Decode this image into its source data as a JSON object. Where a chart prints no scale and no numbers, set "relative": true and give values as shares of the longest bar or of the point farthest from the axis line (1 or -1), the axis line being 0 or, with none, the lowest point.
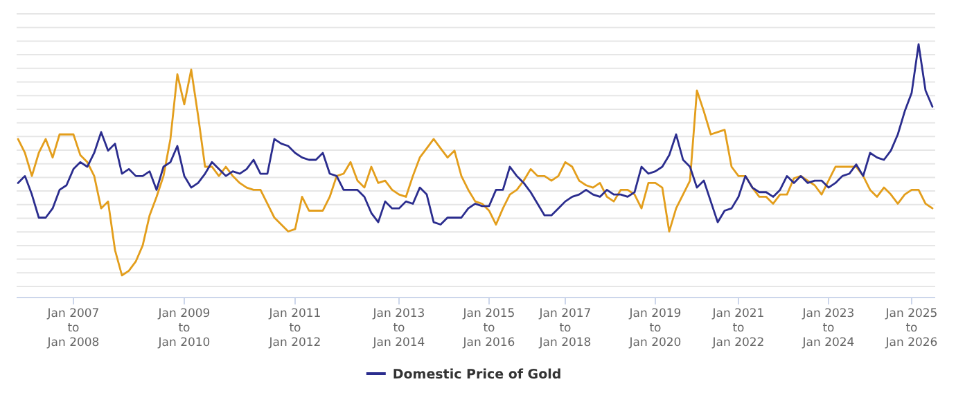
{
  "chart_data": {
    "type": "line",
    "relative": true,
    "grid": "y",
    "legend": "bottom",
    "categories": [
      null,
      null,
      null,
      null,
      null,
      null,
      null,
      null,
      "Jan 2007\nto\nJan 2008",
      null,
      null,
      null,
      null,
      null,
      null,
      null,
      null,
      null,
      null,
      null,
      null,
      null,
      null,
      null,
      "Jan 2009\nto\nJan 2010",
      null,
      null,
      null,
      null,
      null,
      null,
      null,
      null,
      null,
      null,
      null,
      null,
      null,
      null,
      null,
      "Jan 2011\nto\nJan 2012",
      null,
      null,
      null,
      null,
      null,
      null,
      null,
      null,
      null,
      null,
      null,
      null,
      null,
      null,
      "Jan 2013\nto\nJan 2014",
      null,
      null,
      null,
      null,
      null,
      null,
      null,
      null,
      null,
      null,
      null,
      null,
      "Jan 2015\nto\nJan 2016",
      null,
      null,
      null,
      null,
      null,
      null,
      null,
      null,
      null,
      null,
      "Jan 2017\nto\nJan 2018",
      null,
      null,
      null,
      null,
      null,
      null,
      null,
      null,
      null,
      null,
      null,
      null,
      "Jan 2019\nto\nJan 2020",
      null,
      null,
      null,
      null,
      null,
      null,
      null,
      null,
      null,
      null,
      null,
      "Jan 2021\nto\nJan 2022",
      null,
      null,
      null,
      null,
      null,
      null,
      null,
      null,
      null,
      null,
      null,
      null,
      "Jan 2023\nto\nJan 2024",
      null,
      null,
      null,
      null,
      null,
      null,
      null,
      null,
      null,
      null,
      null,
      "Jan 2025\nto\nJan 2026",
      null,
      null,
      null
    ],
    "series": [
      {
        "color": "#e39e1c",
        "values": [
          0.59,
          0.53,
          0.43,
          0.53,
          0.59,
          0.51,
          0.61,
          0.61,
          0.61,
          0.52,
          0.49,
          0.43,
          0.29,
          0.32,
          0.11,
          0,
          0.02,
          0.06,
          0.13,
          0.26,
          0.34,
          0.43,
          0.59,
          0.87,
          0.74,
          0.89,
          0.69,
          0.47,
          0.47,
          0.43,
          0.47,
          0.43,
          0.4,
          0.38,
          0.37,
          0.37,
          0.31,
          0.25,
          0.22,
          0.19,
          0.2,
          0.34,
          0.28,
          0.28,
          0.28,
          0.34,
          0.43,
          0.44,
          0.49,
          0.41,
          0.38,
          0.47,
          0.4,
          0.41,
          0.37,
          0.35,
          0.34,
          0.43,
          0.51,
          0.55,
          0.59,
          0.55,
          0.51,
          0.54,
          0.43,
          0.37,
          0.32,
          0.31,
          0.28,
          0.22,
          0.29,
          0.35,
          0.37,
          0.41,
          0.46,
          0.43,
          0.43,
          0.41,
          0.43,
          0.49,
          0.47,
          0.41,
          0.39,
          0.38,
          0.4,
          0.34,
          0.32,
          0.37,
          0.37,
          0.35,
          0.29,
          0.4,
          0.4,
          0.38,
          0.19,
          0.29,
          0.35,
          0.41,
          0.8,
          0.71,
          0.61,
          0.62,
          0.63,
          0.47,
          0.43,
          0.43,
          0.38,
          0.34,
          0.34,
          0.31,
          0.35,
          0.35,
          0.42,
          0.43,
          0.41,
          0.39,
          0.35,
          0.41,
          0.47,
          0.47,
          0.47,
          0.47,
          0.43,
          0.37,
          0.34,
          0.38,
          0.35,
          0.31,
          0.35,
          0.37,
          0.37,
          0.31,
          0.29
        ]
      },
      {
        "name": "Domestic Price of Gold",
        "color": "#2b2d8e",
        "values": [
          0.4,
          0.43,
          0.35,
          0.25,
          0.25,
          0.29,
          0.37,
          0.39,
          0.46,
          0.49,
          0.47,
          0.53,
          0.62,
          0.54,
          0.57,
          0.44,
          0.46,
          0.43,
          0.43,
          0.45,
          0.37,
          0.47,
          0.49,
          0.56,
          0.43,
          0.38,
          0.4,
          0.44,
          0.49,
          0.46,
          0.43,
          0.45,
          0.44,
          0.46,
          0.5,
          0.44,
          0.44,
          0.59,
          0.57,
          0.56,
          0.53,
          0.51,
          0.5,
          0.5,
          0.53,
          0.44,
          0.43,
          0.37,
          0.37,
          0.37,
          0.34,
          0.27,
          0.23,
          0.32,
          0.29,
          0.29,
          0.32,
          0.31,
          0.38,
          0.35,
          0.23,
          0.22,
          0.25,
          0.25,
          0.25,
          0.29,
          0.31,
          0.3,
          0.3,
          0.37,
          0.37,
          0.47,
          0.43,
          0.4,
          0.36,
          0.31,
          0.26,
          0.26,
          0.29,
          0.32,
          0.34,
          0.35,
          0.37,
          0.35,
          0.34,
          0.37,
          0.35,
          0.35,
          0.34,
          0.36,
          0.47,
          0.44,
          0.45,
          0.47,
          0.52,
          0.61,
          0.5,
          0.47,
          0.38,
          0.41,
          0.32,
          0.23,
          0.28,
          0.29,
          0.34,
          0.43,
          0.38,
          0.36,
          0.36,
          0.34,
          0.37,
          0.43,
          0.4,
          0.43,
          0.4,
          0.41,
          0.41,
          0.38,
          0.4,
          0.43,
          0.44,
          0.48,
          0.43,
          0.53,
          0.51,
          0.5,
          0.54,
          0.61,
          0.71,
          0.79,
          1,
          0.8,
          0.73
        ]
      }
    ]
  }
}
